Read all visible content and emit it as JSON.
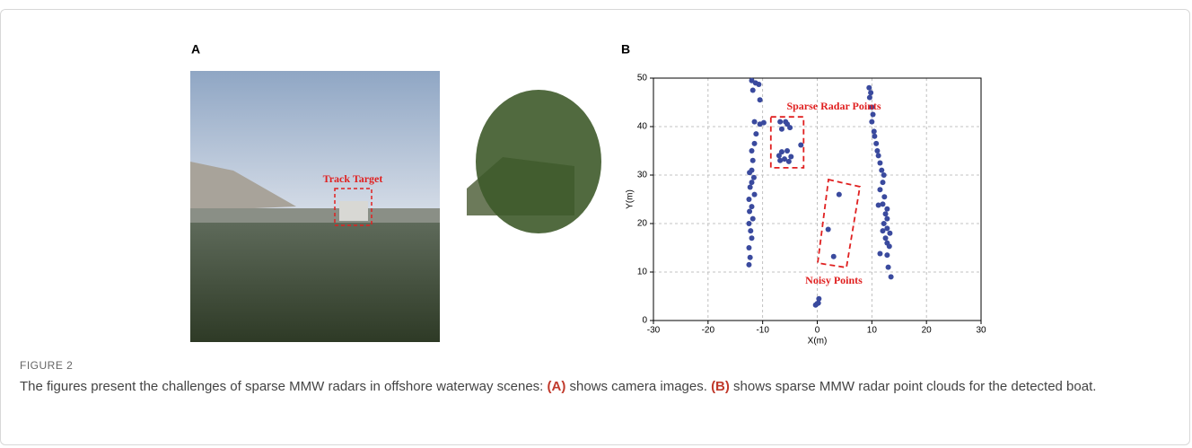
{
  "panels": [
    "A",
    "B"
  ],
  "photo": {
    "annotation": "Track Target"
  },
  "chart_data": {
    "type": "scatter",
    "xlabel": "X(m)",
    "ylabel": "Y(m)",
    "xlim": [
      -30,
      30
    ],
    "ylim": [
      0,
      50
    ],
    "xticks": [
      -30,
      -20,
      -10,
      0,
      10,
      20,
      30
    ],
    "yticks": [
      0,
      10,
      20,
      30,
      40,
      50
    ],
    "grid": true,
    "annotations": [
      "Sparse Radar Points",
      "Noisy Points"
    ],
    "series": [
      {
        "color": "#3a4a9e",
        "x": [
          -12.5,
          -12.3,
          -12.5,
          -12,
          -12.2,
          -12.5,
          -11.8,
          -12.4,
          -12,
          -12.5,
          -11.5,
          -12.3,
          -12,
          -11.6,
          -12.4,
          -12,
          -11.8,
          -12,
          -11.5,
          -11.2,
          -11.5,
          -10.5,
          -9.8,
          -10.5,
          -11.8,
          -12,
          -11.3,
          -10.7,
          -6.8,
          -5.8,
          -5.5,
          -6.5,
          -5,
          -3,
          -6.5,
          -5.5,
          -6,
          -4.8,
          -6.8,
          -5.2,
          -7,
          4,
          2,
          3,
          0,
          0.3,
          -0.3,
          0.2,
          9.5,
          9.8,
          9.6,
          10,
          10.2,
          10,
          10.4,
          10.5,
          10.8,
          11,
          11.2,
          11.5,
          11.8,
          12.2,
          12,
          11.5,
          12.3,
          12,
          11.2,
          12.8,
          12.5,
          12.8,
          12.2,
          12.8,
          12,
          13.3,
          12.5,
          12.8,
          13.2,
          11.5,
          12.8,
          13,
          13.5
        ],
        "y": [
          11.5,
          13,
          15,
          17,
          18.5,
          20,
          21,
          22.5,
          23.5,
          25,
          26,
          27.5,
          28.5,
          29.5,
          30.5,
          31,
          33,
          35,
          36.5,
          38.5,
          41,
          40.5,
          40.8,
          45.5,
          47.5,
          49.5,
          49,
          48.7,
          41,
          41,
          40.5,
          39.5,
          39.8,
          36.2,
          34.8,
          35,
          33.3,
          33.8,
          33,
          32.8,
          34,
          26,
          18.8,
          13.2,
          3.5,
          4.5,
          3.2,
          3.6,
          48,
          47,
          46,
          44,
          42.5,
          41,
          39,
          38,
          36.5,
          35,
          34,
          32.5,
          31,
          30,
          28.5,
          27,
          25.5,
          24,
          23.8,
          23,
          22,
          21,
          20,
          19,
          18.5,
          18,
          17,
          16,
          15.3,
          13.8,
          13.5,
          11,
          9
        ]
      }
    ]
  },
  "caption": {
    "label": "FIGURE 2",
    "parts": [
      "The figures present the challenges of sparse MMW radars in offshore waterway scenes: ",
      "(A)",
      " shows camera images. ",
      "(B)",
      " shows sparse MMW radar point clouds for the detected boat."
    ]
  }
}
